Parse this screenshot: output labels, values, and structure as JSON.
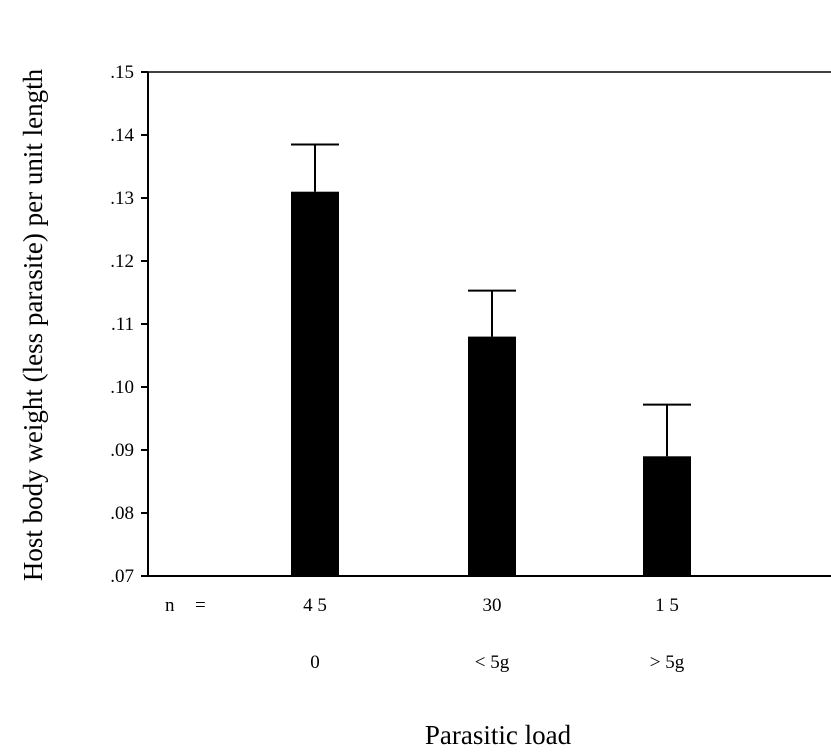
{
  "chart_data": {
    "type": "bar",
    "title": "",
    "xlabel": "Parasitic load",
    "ylabel": "Host body weight  (less parasite) per unit length",
    "categories": [
      "0",
      "< 5g",
      "> 5g"
    ],
    "values": [
      0.131,
      0.108,
      0.089
    ],
    "error_upper": [
      0.1385,
      0.1153,
      0.0972
    ],
    "n_prefix": "n",
    "n_equals": "=",
    "n_values": [
      "4 5",
      "30",
      "1 5"
    ],
    "ylim": [
      0.07,
      0.15
    ],
    "yticks": [
      0.07,
      0.08,
      0.09,
      0.1,
      0.11,
      0.12,
      0.13,
      0.14,
      0.15
    ],
    "ytick_labels": [
      ".07",
      ".08",
      ".09",
      ".10",
      ".11",
      ".12",
      ".13",
      ".14",
      ".15"
    ],
    "grid": false,
    "legend": "none",
    "bar_color": "#000000"
  }
}
